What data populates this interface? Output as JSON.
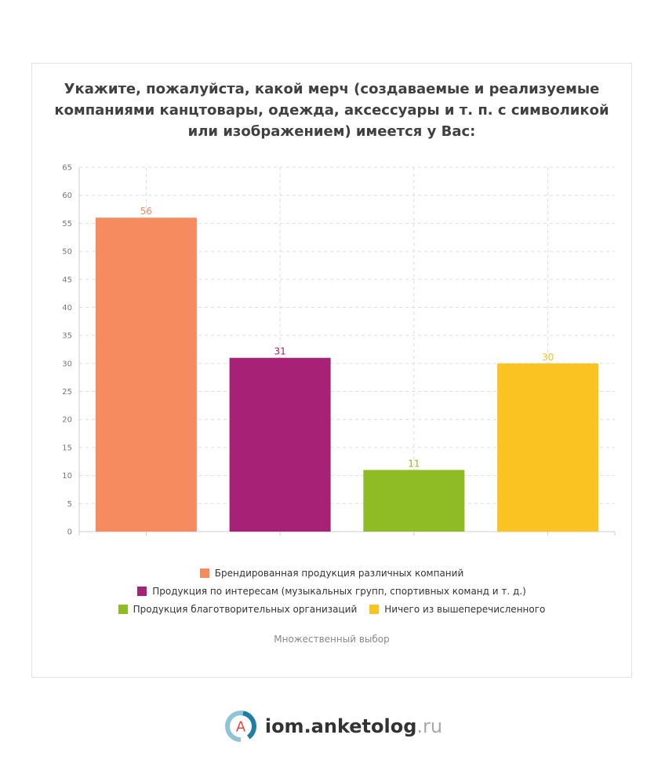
{
  "title": "Укажите, пожалуйста, какой мерч (создаваемые и реализуемые компаниями канцтовары, одежда, аксессуары и т. п. с символикой или изображением) имеется у Вас:",
  "chart_data": {
    "type": "bar",
    "title": "Укажите, пожалуйста, какой мерч (создаваемые и реализуемые компаниями канцтовары, одежда, аксессуары и т. п. с символикой или изображением) имеется у Вас:",
    "categories": [
      "Брендированная продукция различных компаний",
      "Продукция по интересам (музыкальных групп, спортивных команд и т. д.)",
      "Продукция благотворительных организаций",
      "Ничего из вышеперечисленного"
    ],
    "values": [
      56,
      31,
      11,
      30
    ],
    "colors": [
      "#f58b5e",
      "#a72177",
      "#8fbb24",
      "#fac321"
    ],
    "ylim": [
      0,
      65
    ],
    "yticks": [
      0,
      5,
      10,
      15,
      20,
      25,
      30,
      35,
      40,
      45,
      50,
      55,
      60,
      65
    ],
    "grid": true,
    "xlabel": "",
    "ylabel": "",
    "legend_position": "bottom"
  },
  "legend": {
    "items": [
      {
        "label": "Брендированная продукция различных компаний",
        "color": "#f58b5e"
      },
      {
        "label": "Продукция по интересам (музыкальных групп, спортивных команд и т. д.)",
        "color": "#a72177"
      },
      {
        "label": "Продукция благотворительных организаций",
        "color": "#8fbb24"
      },
      {
        "label": "Ничего из вышеперечисленного",
        "color": "#fac321"
      }
    ]
  },
  "note": "Множественный выбор",
  "footer": {
    "logo_letter": "А",
    "brand": "iom.anketolog",
    "tld": ".ru"
  }
}
